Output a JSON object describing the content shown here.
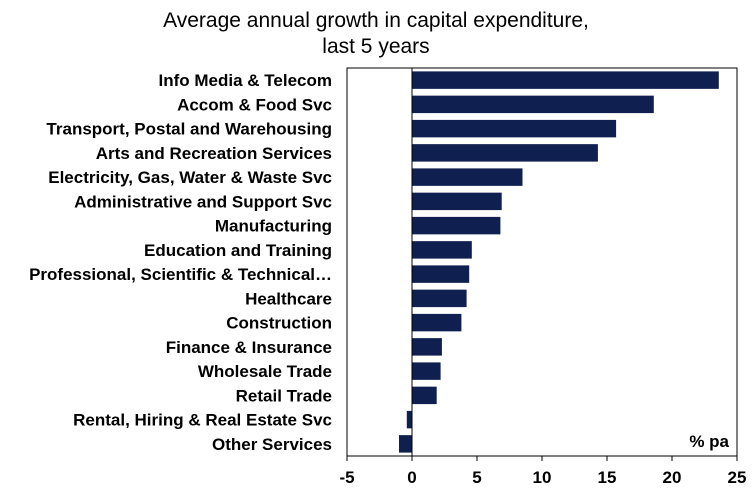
{
  "chart_data": {
    "type": "bar",
    "orientation": "horizontal",
    "title": [
      "Average annual growth in capital expenditure,",
      "last 5 years"
    ],
    "unit_label": "% pa",
    "categories": [
      "Info Media & Telecom",
      "Accom & Food Svc",
      "Transport, Postal and Warehousing",
      "Arts and Recreation Services",
      "Electricity, Gas, Water & Waste Svc",
      "Administrative and Support Svc",
      "Manufacturing",
      "Education and Training",
      "Professional, Scientific & Technical…",
      "Healthcare",
      "Construction",
      "Finance & Insurance",
      "Wholesale Trade",
      "Retail Trade",
      "Rental, Hiring & Real Estate Svc",
      "Other Services"
    ],
    "values": [
      23.6,
      18.6,
      15.7,
      14.3,
      8.5,
      6.9,
      6.8,
      4.6,
      4.4,
      4.2,
      3.8,
      2.3,
      2.2,
      1.9,
      -0.4,
      -1.0
    ],
    "xlim": [
      -5,
      25
    ],
    "xticks": [
      -5,
      0,
      5,
      10,
      15,
      20,
      25
    ],
    "bar_color": "#0f1f4f",
    "grid": false,
    "legend": "none"
  }
}
